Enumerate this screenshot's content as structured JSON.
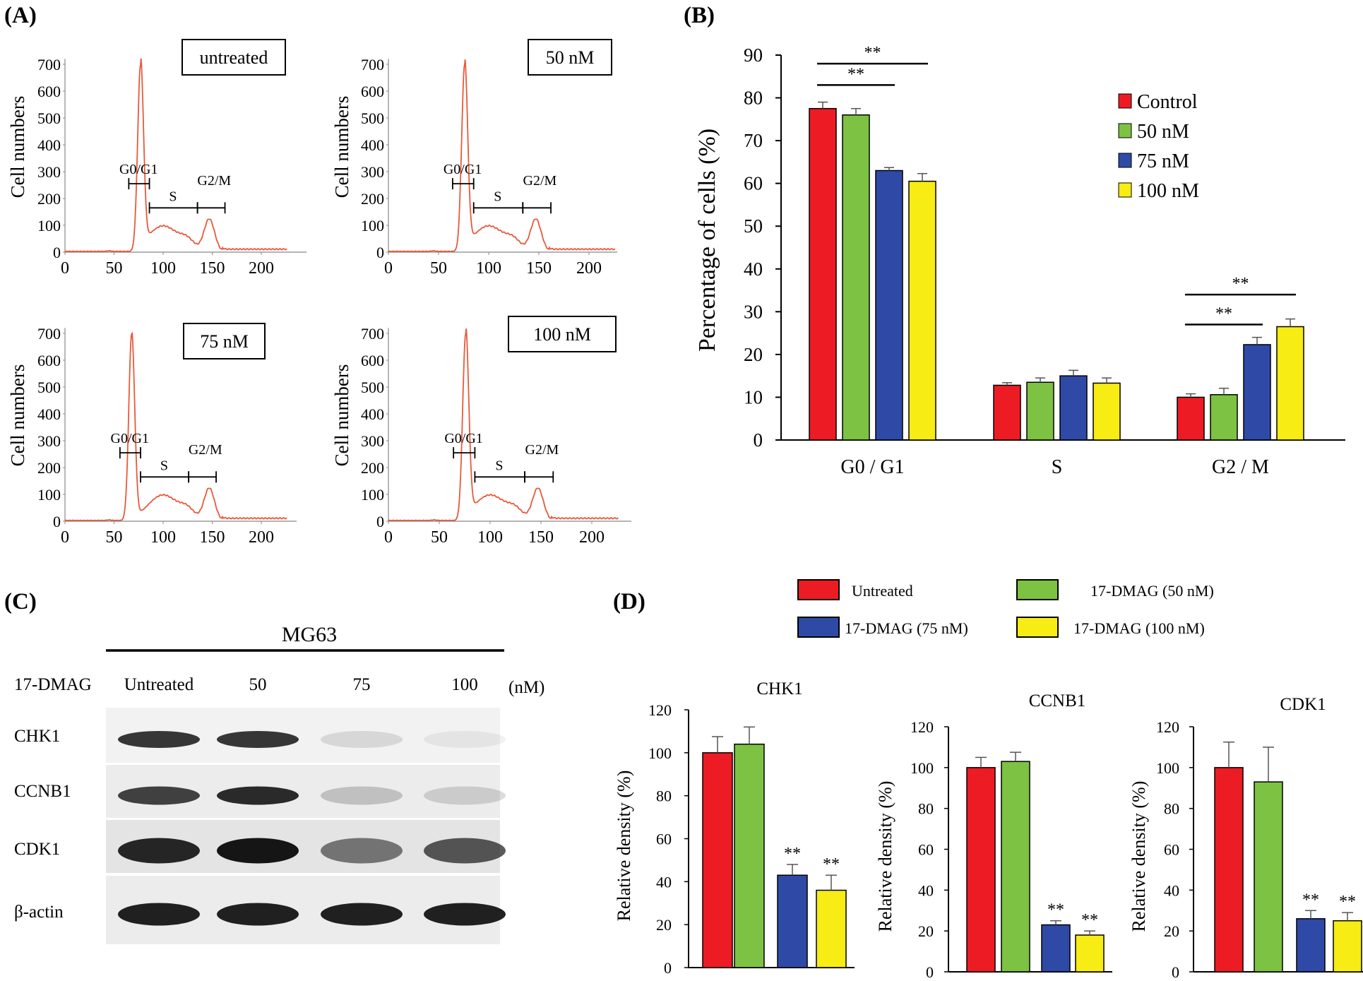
{
  "colors": {
    "control": "#ed1c24",
    "c50": "#7dc242",
    "c75": "#2e4aa6",
    "c100": "#f7ec13",
    "histogram": "#e8593a",
    "axis": "#000000"
  },
  "panel_labels": {
    "a": "(A)",
    "b": "(B)",
    "c": "(C)",
    "d": "(D)"
  },
  "panel_a": {
    "ylabel": "Cell numbers",
    "y_ticks": [
      "0",
      "100",
      "200",
      "300",
      "400",
      "500",
      "600",
      "700"
    ],
    "x_ticks": [
      "0",
      "50",
      "100",
      "150",
      "200"
    ],
    "phase_labels": {
      "g0g1": "G0/G1",
      "s": "S",
      "g2m": "G2/M"
    },
    "panels": [
      {
        "label": "untreated"
      },
      {
        "label": "50 nM"
      },
      {
        "label": "75 nM"
      },
      {
        "label": "100 nM"
      }
    ]
  },
  "panel_c": {
    "cell_line": "MG63",
    "treatment_label": "17-DMAG",
    "unit_label": "(nM)",
    "lanes": [
      "Untreated",
      "50",
      "75",
      "100"
    ],
    "proteins": [
      "CHK1",
      "CCNB1",
      "CDK1",
      "β-actin"
    ]
  },
  "legend_d": {
    "items": [
      "Untreated",
      "17-DMAG (50 nM)",
      "17-DMAG (75 nM)",
      "17-DMAG (100 nM)"
    ]
  },
  "chart_data": [
    {
      "id": "B",
      "type": "bar",
      "ylabel": "Percentage of cells (%)",
      "categories": [
        "G0 / G1",
        "S",
        "G2 / M"
      ],
      "ylim": [
        0,
        90
      ],
      "yticks": [
        0,
        10,
        20,
        30,
        40,
        50,
        60,
        70,
        80,
        90
      ],
      "series": [
        {
          "name": "Control",
          "values": [
            77.5,
            12.8,
            10.0
          ],
          "errors": [
            1.5,
            0.6,
            0.8
          ]
        },
        {
          "name": "50 nM",
          "values": [
            76.0,
            13.5,
            10.6
          ],
          "errors": [
            1.5,
            1.0,
            1.5
          ]
        },
        {
          "name": "75 nM",
          "values": [
            63.0,
            15.0,
            22.3
          ],
          "errors": [
            0.7,
            1.3,
            1.7
          ]
        },
        {
          "name": "100 nM",
          "values": [
            60.5,
            13.3,
            26.5
          ],
          "errors": [
            1.8,
            1.2,
            1.8
          ]
        }
      ],
      "significance": [
        {
          "label": "**",
          "group": 0,
          "from": 0,
          "to": 2,
          "y": 83
        },
        {
          "label": "**",
          "group": 0,
          "from": 0,
          "to": 3,
          "y": 88
        },
        {
          "label": "**",
          "group": 2,
          "from": 0,
          "to": 2,
          "y": 27
        },
        {
          "label": "**",
          "group": 2,
          "from": 0,
          "to": 3,
          "y": 34
        }
      ],
      "legend": [
        "Control",
        "50 nM",
        "75 nM",
        "100 nM"
      ]
    },
    {
      "id": "D-CHK1",
      "type": "bar",
      "title": "CHK1",
      "ylabel": "Relative density (%)",
      "categories": [
        "Untreated",
        "17-DMAG (50 nM)",
        "17-DMAG (75 nM)",
        "17-DMAG (100 nM)"
      ],
      "values": [
        100,
        104,
        43,
        36
      ],
      "errors": [
        7.5,
        8,
        5,
        7
      ],
      "stars": [
        "",
        "",
        "**",
        "**"
      ],
      "ylim": [
        0,
        120
      ],
      "yticks": [
        0,
        20,
        40,
        60,
        80,
        100,
        120
      ]
    },
    {
      "id": "D-CCNB1",
      "type": "bar",
      "title": "CCNB1",
      "ylabel": "Relative density (%)",
      "categories": [
        "Untreated",
        "17-DMAG (50 nM)",
        "17-DMAG (75 nM)",
        "17-DMAG (100 nM)"
      ],
      "values": [
        100,
        103,
        23,
        18
      ],
      "errors": [
        5,
        4.5,
        2,
        2
      ],
      "stars": [
        "",
        "",
        "**",
        "**"
      ],
      "ylim": [
        0,
        120
      ],
      "yticks": [
        0,
        20,
        40,
        60,
        80,
        100,
        120
      ]
    },
    {
      "id": "D-CDK1",
      "type": "bar",
      "title": "CDK1",
      "ylabel": "Relative density (%)",
      "categories": [
        "Untreated",
        "17-DMAG (50 nM)",
        "17-DMAG (75 nM)",
        "17-DMAG (100 nM)"
      ],
      "values": [
        100,
        93,
        26,
        25
      ],
      "errors": [
        12.5,
        17,
        4,
        4
      ],
      "stars": [
        "",
        "",
        "**",
        "**"
      ],
      "ylim": [
        0,
        120
      ],
      "yticks": [
        0,
        20,
        40,
        60,
        80,
        100,
        120
      ]
    }
  ]
}
